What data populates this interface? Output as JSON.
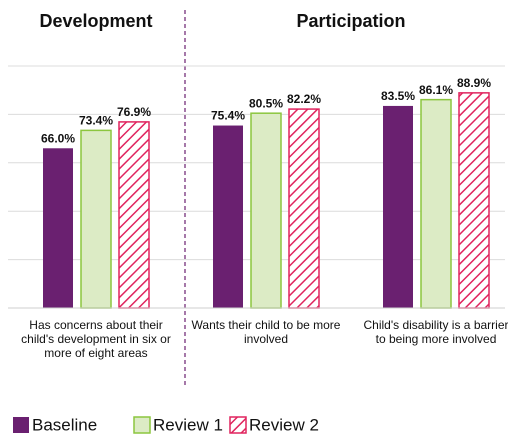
{
  "chart_data": {
    "type": "bar",
    "section_titles": [
      "Development",
      "Participation"
    ],
    "categories": [
      "Has concerns about their child's development in six or more of eight areas",
      "Wants their child to be more involved",
      "Child's disability is a barrier to being more involved"
    ],
    "series": [
      {
        "name": "Baseline",
        "color": "#6a2070",
        "values": [
          66.0,
          75.4,
          83.5
        ],
        "value_labels": [
          "66.0%",
          "75.4%",
          "83.5%"
        ]
      },
      {
        "name": "Review 1",
        "color": "#dcebc5",
        "edgecolor": "#8cc63f",
        "values": [
          73.4,
          80.5,
          86.1
        ],
        "value_labels": [
          "73.4%",
          "80.5%",
          "86.1%"
        ]
      },
      {
        "name": "Review 2",
        "color": "#ffffff",
        "edgecolor": "#e0245e",
        "hatch": "/",
        "values": [
          76.9,
          82.2,
          88.9
        ],
        "value_labels": [
          "76.9%",
          "82.2%",
          "88.9%"
        ]
      }
    ],
    "ylim": [
      0,
      100
    ],
    "yticks": [
      0,
      20,
      40,
      60,
      80,
      100
    ],
    "grid": true,
    "legend": "bottom left"
  }
}
